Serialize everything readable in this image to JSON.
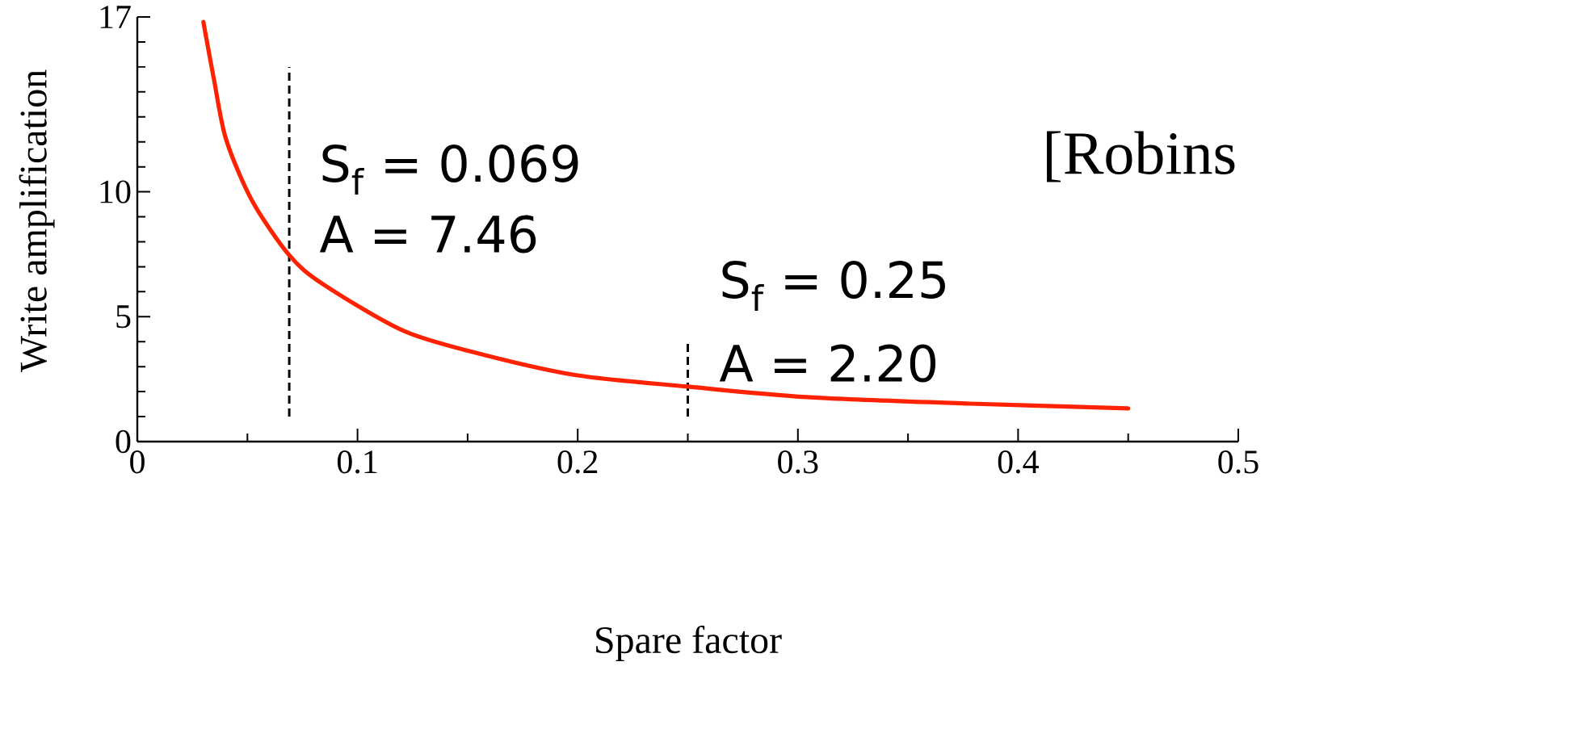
{
  "chart_data": {
    "type": "line",
    "xlabel": "Spare factor",
    "ylabel": "Write amplification",
    "x": [
      0.03,
      0.0349,
      0.0403,
      0.052,
      0.069,
      0.0844,
      0.121,
      0.158,
      0.2,
      0.25,
      0.304,
      0.378,
      0.45
    ],
    "series": [
      {
        "color": "#ff2200",
        "values": [
          16.8,
          14.45,
          12.1,
          9.66,
          7.46,
          6.3,
          4.43,
          3.46,
          2.65,
          2.2,
          1.78,
          1.52,
          1.33
        ]
      }
    ],
    "xlim": [
      0,
      0.5
    ],
    "ylim": [
      0,
      17
    ],
    "xticks": [
      0,
      0.1,
      0.2,
      0.3,
      0.4,
      0.5
    ],
    "yticks": [
      0,
      5,
      10,
      17
    ],
    "ref_lines": [
      {
        "axis": "x",
        "value": 0.069,
        "color": "#000000",
        "line_style": "dashed"
      },
      {
        "axis": "x",
        "value": 0.25,
        "color": "#000000",
        "line_style": "dashed"
      }
    ],
    "annotations": [
      "S$_{f}$ = 0.069",
      "A = 7.46",
      "S$_{f}$ = 0.25",
      "A = 2.20",
      "[Robins"
    ],
    "marker": "none",
    "line_style": "solid",
    "grid": false
  }
}
